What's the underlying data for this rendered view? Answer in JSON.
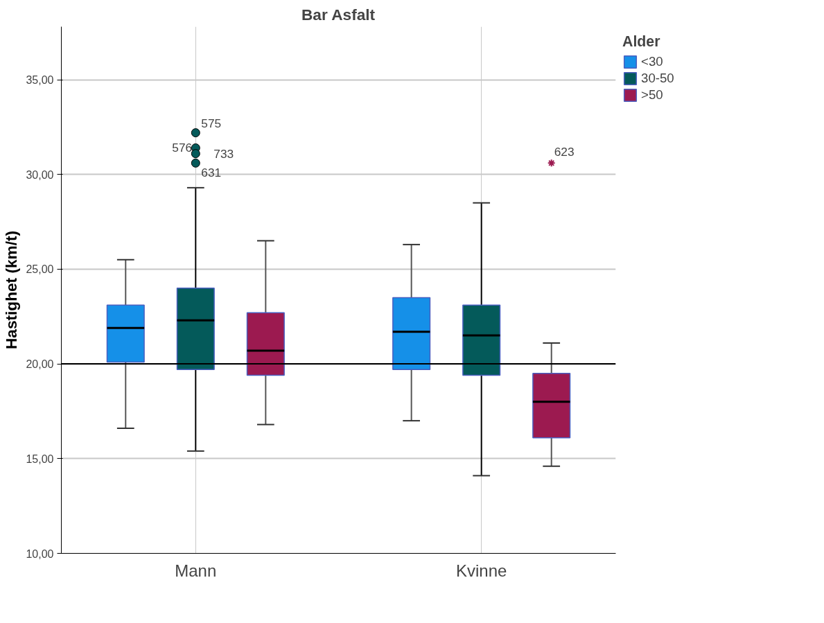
{
  "chart_data": {
    "type": "box",
    "title": "Bar Asfalt",
    "ylabel": "Hastighet (km/t)",
    "legend_title": "Alder",
    "categories": [
      "Mann",
      "Kvinne"
    ],
    "ylim": [
      10,
      37.8
    ],
    "yticks": [
      {
        "value": 10,
        "label": "10,00"
      },
      {
        "value": 15,
        "label": "15,00"
      },
      {
        "value": 20,
        "label": "20,00"
      },
      {
        "value": 25,
        "label": "25,00"
      },
      {
        "value": 30,
        "label": "30,00"
      },
      {
        "value": 35,
        "label": "35,00"
      }
    ],
    "grid": true,
    "legend": "top right",
    "ref_lines": [
      {
        "axis": "y",
        "value": 20,
        "color": "#000000"
      }
    ],
    "series": [
      {
        "name": "<30",
        "color": "#1590e8",
        "boxes": [
          {
            "low": 16.6,
            "q1": 20.1,
            "median": 21.9,
            "q3": 23.1,
            "high": 25.5
          },
          {
            "low": 17.0,
            "q1": 19.7,
            "median": 21.7,
            "q3": 23.5,
            "high": 26.3
          }
        ]
      },
      {
        "name": "30-50",
        "color": "#045a5a",
        "marker": "circle",
        "boxes": [
          {
            "low": 15.4,
            "q1": 19.7,
            "median": 22.3,
            "q3": 24.0,
            "high": 29.3,
            "outliers": [
              32.2,
              31.4,
              31.1,
              30.6
            ]
          },
          {
            "low": 14.1,
            "q1": 19.4,
            "median": 21.5,
            "q3": 23.1,
            "high": 28.5
          }
        ]
      },
      {
        "name": ">50",
        "color": "#9c1a50",
        "marker": "star",
        "boxes": [
          {
            "low": 16.8,
            "q1": 19.4,
            "median": 20.7,
            "q3": 22.7,
            "high": 26.5
          },
          {
            "low": 14.6,
            "q1": 16.1,
            "median": 18.0,
            "q3": 19.5,
            "high": 21.1,
            "outliers": [
              30.6
            ]
          }
        ]
      }
    ],
    "annotations": [
      "575",
      "576",
      "733",
      "631",
      "623"
    ]
  }
}
